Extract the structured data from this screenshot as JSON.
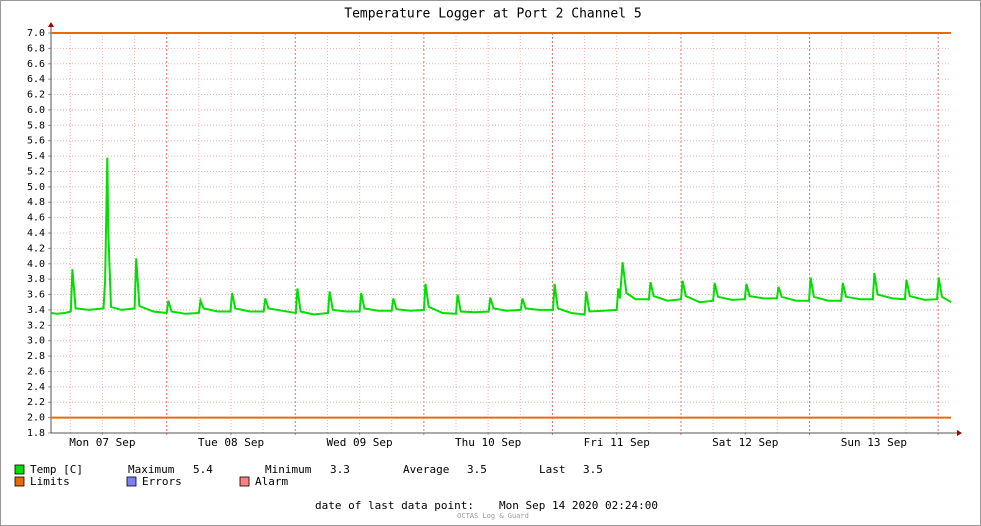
{
  "chart_data": {
    "type": "line",
    "title": "Temperature Logger at Port 2 Channel 5",
    "x": [
      2.4,
      3.5,
      5.0,
      6.1,
      6.4,
      7.0,
      9.5,
      12.2,
      12.5,
      12.9,
      13.1,
      13.6,
      15.5,
      18.0,
      18.3,
      18.9,
      21.5,
      24.0,
      24.3,
      24.9,
      27.5,
      30.0,
      30.3,
      30.9,
      33.5,
      35.9,
      36.2,
      36.8,
      39.5,
      42.1,
      42.4,
      43.0,
      45.5,
      48.1,
      48.4,
      49.0,
      51.5,
      54.1,
      54.4,
      55.0,
      57.5,
      60.0,
      60.3,
      60.9,
      63.5,
      66.0,
      66.3,
      66.9,
      69.5,
      72.0,
      72.3,
      72.9,
      75.5,
      78.0,
      78.3,
      78.9,
      81.5,
      84.1,
      84.4,
      85.0,
      87.5,
      90.1,
      90.4,
      91.0,
      93.5,
      96.1,
      96.4,
      97.0,
      99.5,
      102.0,
      102.3,
      102.9,
      105.5,
      108.0,
      108.3,
      108.6,
      109.1,
      109.8,
      111.5,
      114.0,
      114.3,
      114.9,
      117.5,
      120.0,
      120.3,
      120.9,
      123.5,
      126.0,
      126.3,
      126.9,
      129.5,
      131.9,
      132.2,
      132.8,
      135.5,
      137.9,
      138.2,
      138.8,
      141.5,
      143.9,
      144.2,
      144.8,
      147.5,
      149.9,
      150.2,
      150.8,
      153.5,
      155.8,
      156.1,
      156.7,
      159.5,
      161.8,
      162.1,
      162.7,
      165.5,
      167.8,
      168.1,
      168.7,
      170.4
    ],
    "series": [
      {
        "name": "Temp [C]",
        "color": "#00e000",
        "values": [
          3.36,
          3.35,
          3.36,
          3.38,
          3.93,
          3.42,
          3.4,
          3.42,
          3.78,
          5.38,
          4.4,
          3.44,
          3.4,
          3.42,
          4.07,
          3.45,
          3.38,
          3.36,
          3.52,
          3.38,
          3.35,
          3.36,
          3.52,
          3.42,
          3.38,
          3.38,
          3.62,
          3.42,
          3.38,
          3.38,
          3.55,
          3.42,
          3.39,
          3.36,
          3.68,
          3.38,
          3.34,
          3.36,
          3.64,
          3.4,
          3.38,
          3.38,
          3.62,
          3.42,
          3.39,
          3.39,
          3.55,
          3.41,
          3.39,
          3.4,
          3.74,
          3.44,
          3.36,
          3.35,
          3.6,
          3.38,
          3.37,
          3.38,
          3.56,
          3.42,
          3.39,
          3.4,
          3.55,
          3.42,
          3.4,
          3.4,
          3.74,
          3.42,
          3.36,
          3.34,
          3.64,
          3.38,
          3.39,
          3.4,
          3.68,
          3.55,
          4.02,
          3.62,
          3.54,
          3.54,
          3.76,
          3.58,
          3.52,
          3.54,
          3.78,
          3.58,
          3.5,
          3.52,
          3.75,
          3.57,
          3.53,
          3.54,
          3.74,
          3.58,
          3.55,
          3.55,
          3.7,
          3.57,
          3.52,
          3.52,
          3.82,
          3.57,
          3.52,
          3.52,
          3.75,
          3.57,
          3.54,
          3.54,
          3.88,
          3.6,
          3.55,
          3.54,
          3.79,
          3.58,
          3.53,
          3.54,
          3.82,
          3.57,
          3.5
        ]
      }
    ],
    "xlim": [
      2.4,
      170.4
    ],
    "xticks": [
      {
        "value": 12,
        "label": "Mon 07 Sep"
      },
      {
        "value": 36,
        "label": "Tue 08 Sep"
      },
      {
        "value": 60,
        "label": "Wed 09 Sep"
      },
      {
        "value": 84,
        "label": "Thu 10 Sep"
      },
      {
        "value": 108,
        "label": "Fri 11 Sep"
      },
      {
        "value": 132,
        "label": "Sat 12 Sep"
      },
      {
        "value": 156,
        "label": "Sun 13 Sep"
      }
    ],
    "x_major_ticks": [
      24,
      48,
      72,
      96,
      120,
      144,
      168
    ],
    "x_minor_ticks": [
      6,
      12,
      18,
      30,
      36,
      42,
      54,
      60,
      66,
      78,
      84,
      90,
      102,
      108,
      114,
      126,
      132,
      138,
      150,
      156,
      162
    ],
    "ylim": [
      1.8,
      7.0
    ],
    "yticks": [
      1.8,
      {
        "value": 2,
        "label": "2.0"
      },
      2.2,
      2.4,
      2.6,
      2.8,
      {
        "value": 3,
        "label": "3.0"
      },
      3.2,
      3.4,
      3.6,
      3.8,
      {
        "value": 4,
        "label": "4.0"
      },
      4.2,
      4.4,
      4.6,
      4.8,
      {
        "value": 5,
        "label": "5.0"
      },
      5.2,
      5.4,
      5.6,
      5.8,
      {
        "value": 6,
        "label": "6.0"
      },
      6.2,
      6.4,
      6.6,
      6.8,
      {
        "value": 7,
        "label": "7.0"
      }
    ],
    "grid": true,
    "limits": {
      "name": "Limits",
      "color": "#e86a00",
      "values": [
        2.0,
        7.0
      ]
    },
    "legend": {
      "stats": [
        {
          "name": "Maximum",
          "value": 5.4
        },
        {
          "name": "Minimum",
          "value": 3.3
        },
        {
          "name": "Average",
          "value": 3.5
        },
        {
          "name": "Last",
          "value": 3.5
        }
      ],
      "extra": [
        {
          "name": "Errors",
          "color": "#7d7dff"
        },
        {
          "name": "Alarm",
          "color": "#ff7f7f"
        }
      ]
    },
    "footer": {
      "label": "date of last data point:",
      "value": "Mon Sep 14 2020 02:24:00",
      "brand": "OCTAS Log & Guard"
    }
  }
}
